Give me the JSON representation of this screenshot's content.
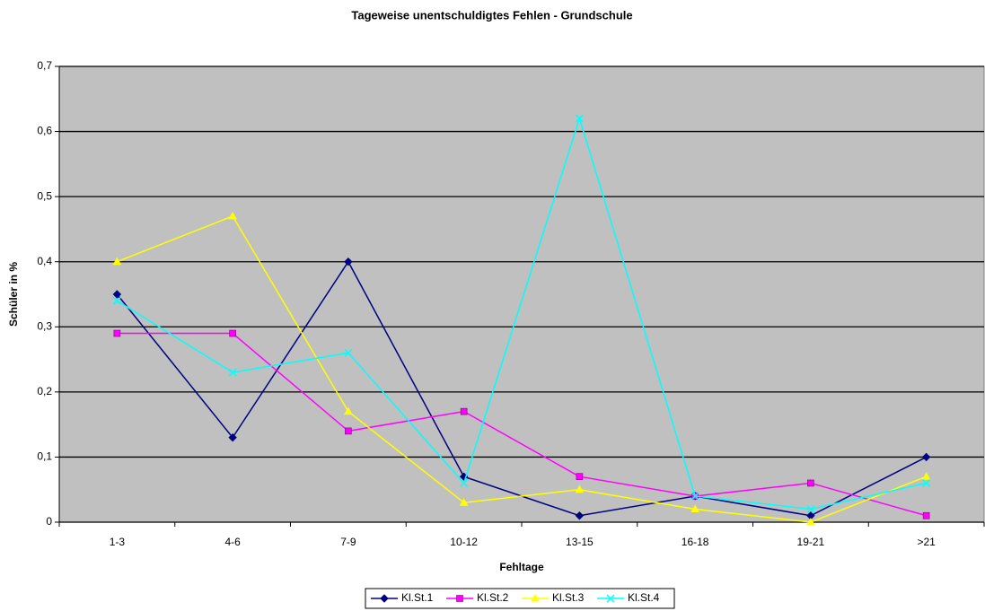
{
  "chart_data": {
    "type": "line",
    "title": "Tageweise unentschuldigtes Fehlen - Grundschule",
    "x_label": "Fehltage",
    "y_label": "Schüler in %",
    "categories": [
      "1-3",
      "4-6",
      "7-9",
      "10-12",
      "13-15",
      "16-18",
      "19-21",
      ">21"
    ],
    "series": [
      {
        "name": "Kl.St.1",
        "color": "#000080",
        "marker": "diamond",
        "values": [
          0.35,
          0.13,
          0.4,
          0.07,
          0.01,
          0.04,
          0.01,
          0.1
        ]
      },
      {
        "name": "Kl.St.2",
        "color": "#ff00ff",
        "marker": "square",
        "values": [
          0.29,
          0.29,
          0.14,
          0.17,
          0.07,
          0.04,
          0.06,
          0.01
        ]
      },
      {
        "name": "Kl.St.3",
        "color": "#ffff00",
        "marker": "triangle",
        "values": [
          0.4,
          0.47,
          0.17,
          0.03,
          0.05,
          0.02,
          0.0,
          0.07
        ]
      },
      {
        "name": "Kl.St.4",
        "color": "#00ffff",
        "marker": "x",
        "values": [
          0.34,
          0.23,
          0.26,
          0.06,
          0.62,
          0.04,
          0.02,
          0.06
        ]
      }
    ],
    "ylim": [
      0,
      0.7
    ],
    "yticks": [
      0,
      {
        "value": 0.1,
        "label": "0,1"
      },
      {
        "value": 0.2,
        "label": "0,2"
      },
      {
        "value": 0.3,
        "label": "0,3"
      },
      {
        "value": 0.4,
        "label": "0,4"
      },
      {
        "value": 0.5,
        "label": "0,5"
      },
      {
        "value": 0.6,
        "label": "0,6"
      },
      {
        "value": 0.7,
        "label": "0,7"
      }
    ],
    "grid": true,
    "legend": "bottom"
  }
}
